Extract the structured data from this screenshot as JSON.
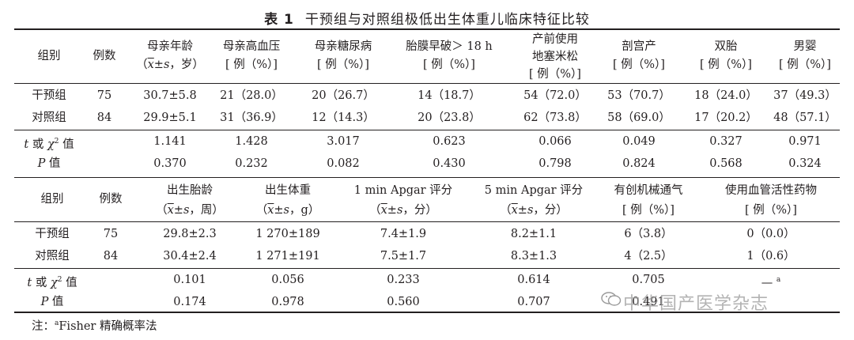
{
  "title": {
    "label": "表 1",
    "text": "干预组与对照组极低出生体重儿临床特征比较"
  },
  "table1": {
    "headers": [
      [
        "组别"
      ],
      [
        "例数"
      ],
      [
        "母亲年龄",
        "（x̄±s，岁）"
      ],
      [
        "母亲高血压",
        "[ 例（%）]"
      ],
      [
        "母亲糖尿病",
        "[ 例（%）]"
      ],
      [
        "胎膜早破＞ 18 h",
        "[ 例（%）]"
      ],
      [
        "产前使用",
        "地塞米松",
        "[ 例（%）]"
      ],
      [
        "剖宫产",
        "[ 例（%）]"
      ],
      [
        "双胎",
        "[ 例（%）]"
      ],
      [
        "男婴",
        "[ 例（%）]"
      ]
    ],
    "rows": [
      [
        "干预组",
        "75",
        "30.7±5.8",
        "21（28.0）",
        "20（26.7）",
        "14（18.7）",
        "54（72.0）",
        "53（70.7）",
        "18（24.0）",
        "37（49.3）"
      ],
      [
        "对照组",
        "84",
        "29.9±5.1",
        "31（36.9）",
        "12（14.3）",
        "20（23.8）",
        "62（73.8）",
        "58（69.0）",
        "17（20.2）",
        "48（57.1）"
      ]
    ],
    "stats": [
      [
        "t 或 χ² 值",
        "",
        "1.141",
        "1.428",
        "3.017",
        "0.623",
        "0.066",
        "0.049",
        "0.327",
        "0.971"
      ],
      [
        "P 值",
        "",
        "0.370",
        "0.232",
        "0.082",
        "0.430",
        "0.798",
        "0.824",
        "0.568",
        "0.324"
      ]
    ]
  },
  "table2": {
    "headers": [
      [
        "组别"
      ],
      [
        "例数"
      ],
      [
        "出生胎龄",
        "（x̄±s，周）"
      ],
      [
        "出生体重",
        "（x̄±s，g）"
      ],
      [
        "1 min Apgar 评分",
        "（x̄±s，分）"
      ],
      [
        "5 min Apgar 评分",
        "（x̄±s，分）"
      ],
      [
        "有创机械通气",
        "[ 例（%）]"
      ],
      [
        "使用血管活性药物",
        "[ 例（%）]"
      ]
    ],
    "rows": [
      [
        "干预组",
        "75",
        "29.8±2.3",
        "1 270±189",
        "7.4±1.9",
        "8.2±1.1",
        "6（3.8）",
        "0（0.0）"
      ],
      [
        "对照组",
        "84",
        "30.4±2.4",
        "1 271±191",
        "7.5±1.7",
        "8.3±1.3",
        "4（2.5）",
        "1（0.6）"
      ]
    ],
    "stats": [
      [
        "t 或 χ² 值",
        "",
        "0.101",
        "0.056",
        "0.233",
        "0.614",
        "0.705",
        "— a"
      ],
      [
        "P 值",
        "",
        "0.174",
        "0.978",
        "0.560",
        "0.707",
        "0.491",
        ""
      ]
    ]
  },
  "footnote": "注：aFisher 精确概率法",
  "watermark": "中华国产医学杂志"
}
